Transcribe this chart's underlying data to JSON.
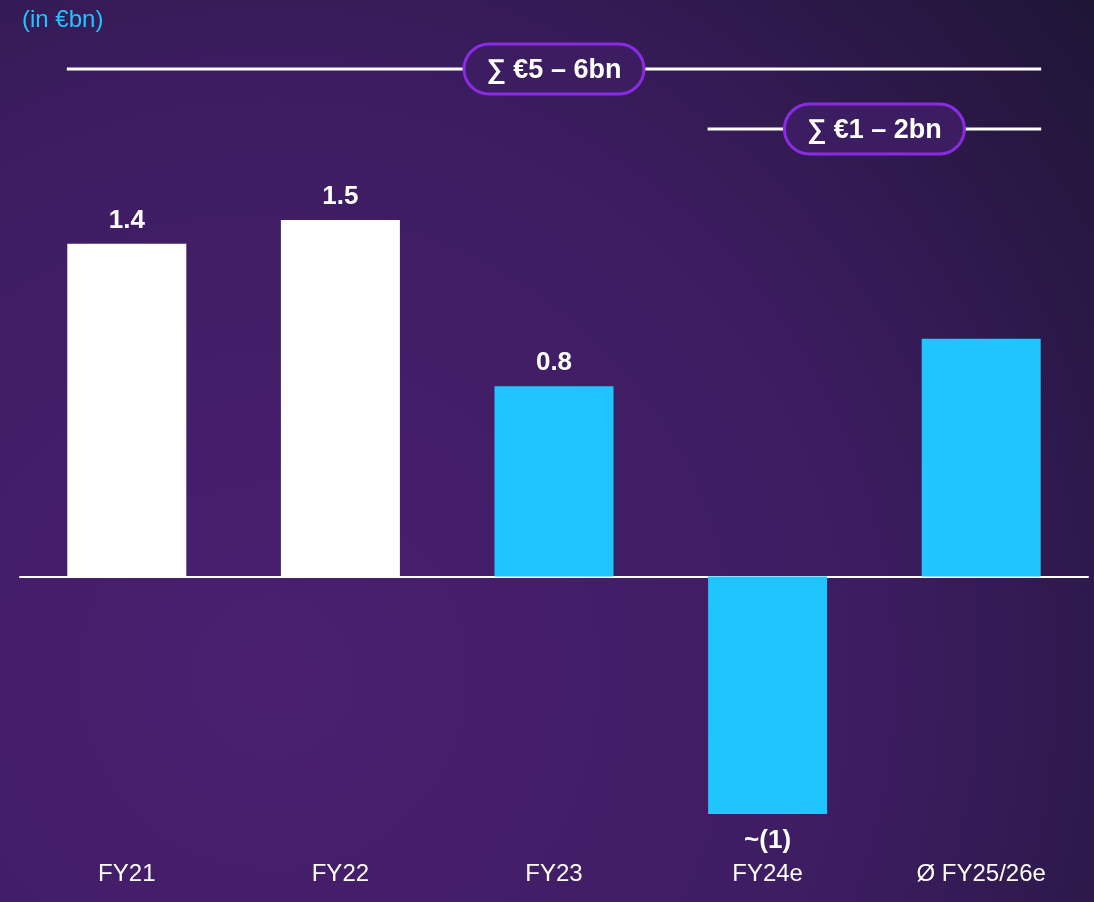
{
  "chart_data": {
    "type": "bar",
    "categories": [
      "FY21",
      "FY22",
      "FY23",
      "FY24e",
      "Ø FY25/26e"
    ],
    "values": [
      1.4,
      1.5,
      0.8,
      -1.0,
      1.0
    ],
    "colors": [
      "#ffffff",
      "#ffffff",
      "#20c4fe",
      "#20c4fe",
      "#20c4fe"
    ],
    "value_labels": [
      "1.4",
      "1.5",
      "0.8",
      "~(1)",
      null
    ],
    "annotations": [
      "(in €bn)",
      "∑ €5 – 6bn",
      "∑ €1 – 2bn"
    ]
  }
}
